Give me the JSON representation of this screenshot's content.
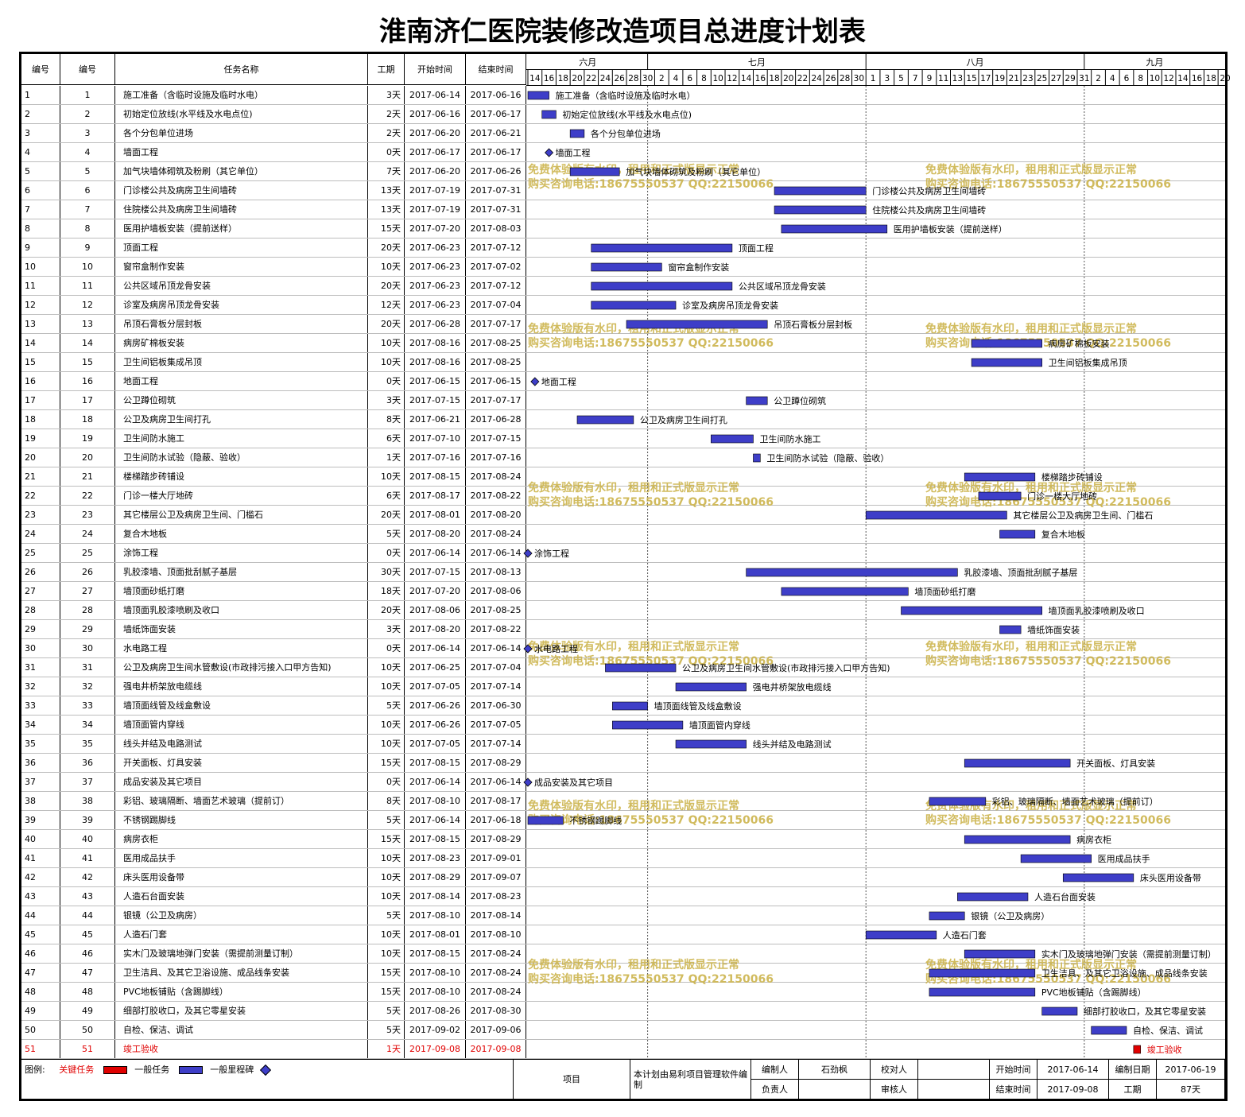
{
  "title": "淮南济仁医院装修改造项目总进度计划表",
  "headers": {
    "id1": "编号",
    "id2": "编号",
    "name": "任务名称",
    "duration": "工期",
    "start": "开始时间",
    "end": "结束时间"
  },
  "chart_data": {
    "type": "gantt",
    "title": "淮南济仁医院装修改造项目总进度计划表",
    "timeline_start": "2017-06-14",
    "timeline_end": "2017-09-21",
    "months": [
      {
        "label": "六月",
        "start": "2017-06-14",
        "end": "2017-07-01"
      },
      {
        "label": "七月",
        "start": "2017-07-01",
        "end": "2017-08-01"
      },
      {
        "label": "八月",
        "start": "2017-08-01",
        "end": "2017-09-01"
      },
      {
        "label": "九月",
        "start": "2017-09-01",
        "end": "2017-09-21"
      }
    ],
    "day_ticks": [
      "14",
      "16",
      "18",
      "20",
      "22",
      "24",
      "26",
      "28",
      "30",
      "2",
      "4",
      "6",
      "8",
      "10",
      "12",
      "14",
      "16",
      "18",
      "20",
      "22",
      "24",
      "26",
      "28",
      "30",
      "1",
      "3",
      "5",
      "7",
      "9",
      "11",
      "13",
      "15",
      "17",
      "19",
      "21",
      "23",
      "25",
      "27",
      "29",
      "31",
      "2",
      "4",
      "6",
      "8",
      "10",
      "12",
      "14",
      "16",
      "18",
      "20"
    ],
    "tasks": [
      {
        "id": "1",
        "name": "施工准备（含临时设施及临时水电）",
        "duration": "3天",
        "start": "2017-06-14",
        "end": "2017-06-16",
        "kind": "task"
      },
      {
        "id": "2",
        "name": "初始定位放线(水平线及水电点位)",
        "duration": "2天",
        "start": "2017-06-16",
        "end": "2017-06-17",
        "kind": "task"
      },
      {
        "id": "3",
        "name": "各个分包单位进场",
        "duration": "2天",
        "start": "2017-06-20",
        "end": "2017-06-21",
        "kind": "task"
      },
      {
        "id": "4",
        "name": "墙面工程",
        "duration": "0天",
        "start": "2017-06-17",
        "end": "2017-06-17",
        "kind": "milestone"
      },
      {
        "id": "5",
        "name": "加气块墙体砌筑及粉刷（其它单位）",
        "duration": "7天",
        "start": "2017-06-20",
        "end": "2017-06-26",
        "kind": "task"
      },
      {
        "id": "6",
        "name": "门诊楼公共及病房卫生间墙砖",
        "duration": "13天",
        "start": "2017-07-19",
        "end": "2017-07-31",
        "kind": "task"
      },
      {
        "id": "7",
        "name": "住院楼公共及病房卫生间墙砖",
        "duration": "13天",
        "start": "2017-07-19",
        "end": "2017-07-31",
        "kind": "task"
      },
      {
        "id": "8",
        "name": "医用护墙板安装（提前送样）",
        "duration": "15天",
        "start": "2017-07-20",
        "end": "2017-08-03",
        "kind": "task"
      },
      {
        "id": "9",
        "name": "顶面工程",
        "duration": "20天",
        "start": "2017-06-23",
        "end": "2017-07-12",
        "kind": "task"
      },
      {
        "id": "10",
        "name": "窗帘盒制作安装",
        "duration": "10天",
        "start": "2017-06-23",
        "end": "2017-07-02",
        "kind": "task"
      },
      {
        "id": "11",
        "name": "公共区域吊顶龙骨安装",
        "duration": "20天",
        "start": "2017-06-23",
        "end": "2017-07-12",
        "kind": "task"
      },
      {
        "id": "12",
        "name": "诊室及病房吊顶龙骨安装",
        "duration": "12天",
        "start": "2017-06-23",
        "end": "2017-07-04",
        "kind": "task"
      },
      {
        "id": "13",
        "name": "吊顶石膏板分层封板",
        "duration": "20天",
        "start": "2017-06-28",
        "end": "2017-07-17",
        "kind": "task"
      },
      {
        "id": "14",
        "name": "病房矿棉板安装",
        "duration": "10天",
        "start": "2017-08-16",
        "end": "2017-08-25",
        "kind": "task"
      },
      {
        "id": "15",
        "name": "卫生间铝板集成吊顶",
        "duration": "10天",
        "start": "2017-08-16",
        "end": "2017-08-25",
        "kind": "task"
      },
      {
        "id": "16",
        "name": "地面工程",
        "duration": "0天",
        "start": "2017-06-15",
        "end": "2017-06-15",
        "kind": "milestone"
      },
      {
        "id": "17",
        "name": "公卫蹲位砌筑",
        "duration": "3天",
        "start": "2017-07-15",
        "end": "2017-07-17",
        "kind": "task"
      },
      {
        "id": "18",
        "name": "公卫及病房卫生间打孔",
        "duration": "8天",
        "start": "2017-06-21",
        "end": "2017-06-28",
        "kind": "task"
      },
      {
        "id": "19",
        "name": "卫生间防水施工",
        "duration": "6天",
        "start": "2017-07-10",
        "end": "2017-07-15",
        "kind": "task"
      },
      {
        "id": "20",
        "name": "卫生间防水试验（隐蔽、验收）",
        "duration": "1天",
        "start": "2017-07-16",
        "end": "2017-07-16",
        "kind": "task"
      },
      {
        "id": "21",
        "name": "楼梯踏步砖铺设",
        "duration": "10天",
        "start": "2017-08-15",
        "end": "2017-08-24",
        "kind": "task"
      },
      {
        "id": "22",
        "name": "门诊一楼大厅地砖",
        "duration": "6天",
        "start": "2017-08-17",
        "end": "2017-08-22",
        "kind": "task"
      },
      {
        "id": "23",
        "name": "其它楼层公卫及病房卫生间、门槛石",
        "duration": "20天",
        "start": "2017-08-01",
        "end": "2017-08-20",
        "kind": "task"
      },
      {
        "id": "24",
        "name": "复合木地板",
        "duration": "5天",
        "start": "2017-08-20",
        "end": "2017-08-24",
        "kind": "task"
      },
      {
        "id": "25",
        "name": "涂饰工程",
        "duration": "0天",
        "start": "2017-06-14",
        "end": "2017-06-14",
        "kind": "milestone"
      },
      {
        "id": "26",
        "name": "乳胶漆墙、顶面批刮腻子基层",
        "duration": "30天",
        "start": "2017-07-15",
        "end": "2017-08-13",
        "kind": "task"
      },
      {
        "id": "27",
        "name": "墙顶面砂纸打磨",
        "duration": "18天",
        "start": "2017-07-20",
        "end": "2017-08-06",
        "kind": "task"
      },
      {
        "id": "28",
        "name": "墙顶面乳胶漆喷刷及收口",
        "duration": "20天",
        "start": "2017-08-06",
        "end": "2017-08-25",
        "kind": "task"
      },
      {
        "id": "29",
        "name": "墙纸饰面安装",
        "duration": "3天",
        "start": "2017-08-20",
        "end": "2017-08-22",
        "kind": "task"
      },
      {
        "id": "30",
        "name": "水电路工程",
        "duration": "0天",
        "start": "2017-06-14",
        "end": "2017-06-14",
        "kind": "milestone"
      },
      {
        "id": "31",
        "name": "公卫及病房卫生间水管敷设(市政排污接入口甲方告知)",
        "duration": "10天",
        "start": "2017-06-25",
        "end": "2017-07-04",
        "kind": "task"
      },
      {
        "id": "32",
        "name": "强电井桥架放电缆线",
        "duration": "10天",
        "start": "2017-07-05",
        "end": "2017-07-14",
        "kind": "task"
      },
      {
        "id": "33",
        "name": "墙顶面线管及线盒敷设",
        "duration": "5天",
        "start": "2017-06-26",
        "end": "2017-06-30",
        "kind": "task"
      },
      {
        "id": "34",
        "name": "墙顶面管内穿线",
        "duration": "10天",
        "start": "2017-06-26",
        "end": "2017-07-05",
        "kind": "task"
      },
      {
        "id": "35",
        "name": "线头并结及电路测试",
        "duration": "10天",
        "start": "2017-07-05",
        "end": "2017-07-14",
        "kind": "task"
      },
      {
        "id": "36",
        "name": "开关面板、灯具安装",
        "duration": "15天",
        "start": "2017-08-15",
        "end": "2017-08-29",
        "kind": "task"
      },
      {
        "id": "37",
        "name": "成品安装及其它项目",
        "duration": "0天",
        "start": "2017-06-14",
        "end": "2017-06-14",
        "kind": "milestone"
      },
      {
        "id": "38",
        "name": "彩铝、玻璃隔断、墙面艺术玻璃（提前订）",
        "duration": "8天",
        "start": "2017-08-10",
        "end": "2017-08-17",
        "kind": "task"
      },
      {
        "id": "39",
        "name": "不锈钢踢脚线",
        "duration": "5天",
        "start": "2017-06-14",
        "end": "2017-06-18",
        "kind": "task"
      },
      {
        "id": "40",
        "name": "病房衣柜",
        "duration": "15天",
        "start": "2017-08-15",
        "end": "2017-08-29",
        "kind": "task"
      },
      {
        "id": "41",
        "name": "医用成品扶手",
        "duration": "10天",
        "start": "2017-08-23",
        "end": "2017-09-01",
        "kind": "task"
      },
      {
        "id": "42",
        "name": "床头医用设备带",
        "duration": "10天",
        "start": "2017-08-29",
        "end": "2017-09-07",
        "kind": "task"
      },
      {
        "id": "43",
        "name": "人造石台面安装",
        "duration": "10天",
        "start": "2017-08-14",
        "end": "2017-08-23",
        "kind": "task"
      },
      {
        "id": "44",
        "name": "银镜（公卫及病房）",
        "duration": "5天",
        "start": "2017-08-10",
        "end": "2017-08-14",
        "kind": "task"
      },
      {
        "id": "45",
        "name": "人造石门套",
        "duration": "10天",
        "start": "2017-08-01",
        "end": "2017-08-10",
        "kind": "task"
      },
      {
        "id": "46",
        "name": "实木门及玻璃地弹门安装（需提前测量订制）",
        "duration": "10天",
        "start": "2017-08-15",
        "end": "2017-08-24",
        "kind": "task"
      },
      {
        "id": "47",
        "name": "卫生洁具、及其它卫浴设施、成品线条安装",
        "duration": "15天",
        "start": "2017-08-10",
        "end": "2017-08-24",
        "kind": "task"
      },
      {
        "id": "48",
        "name": "PVC地板铺贴（含踢脚线）",
        "duration": "15天",
        "start": "2017-08-10",
        "end": "2017-08-24",
        "kind": "task"
      },
      {
        "id": "49",
        "name": "细部打胶收口，及其它零星安装",
        "duration": "5天",
        "start": "2017-08-26",
        "end": "2017-08-30",
        "kind": "task"
      },
      {
        "id": "50",
        "name": "自检、保洁、调试",
        "duration": "5天",
        "start": "2017-09-02",
        "end": "2017-09-06",
        "kind": "task"
      },
      {
        "id": "51",
        "name": "竣工验收",
        "duration": "1天",
        "start": "2017-09-08",
        "end": "2017-09-08",
        "kind": "critical"
      }
    ]
  },
  "watermark": {
    "line1": "免费体验版有水印，租用和正式版显示正常",
    "line2": "购买咨询电话:18675550537 QQ:22150066",
    "color": "#c9b043"
  },
  "colors": {
    "task": "#3e3ec8",
    "critical": "#e00000",
    "grid": "#bdbdbd"
  },
  "legend": {
    "label": "图例:",
    "critical": "关键任务",
    "normal": "一般任务",
    "milestone": "一般里程碑"
  },
  "footer": {
    "project_label": "项目",
    "software_note": "本计划由易利项目管理软件编制",
    "author_label": "编制人",
    "author": "石劲枫",
    "proofreader_label": "校对人",
    "proofreader": "",
    "owner_label": "负责人",
    "owner": "",
    "reviewer_label": "审核人",
    "reviewer": "",
    "start_label": "开始时间",
    "start": "2017-06-14",
    "made_label": "编制日期",
    "made": "2017-06-19",
    "end_label": "结束时间",
    "end": "2017-09-08",
    "duration_label": "工期",
    "duration": "87天"
  }
}
